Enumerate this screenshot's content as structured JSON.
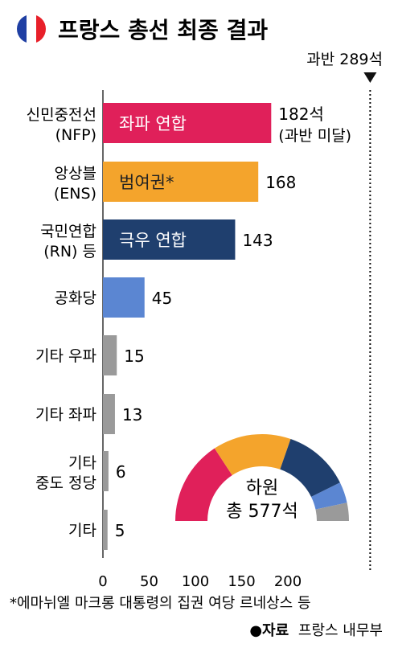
{
  "title": "프랑스 총선 최종 결과",
  "flag_colors": [
    "#1f3fa3",
    "#ffffff",
    "#e8202a"
  ],
  "majority": {
    "value": 289,
    "label": "과반 289석"
  },
  "chart_data": {
    "type": "bar",
    "orientation": "horizontal",
    "xlim": [
      0,
      289
    ],
    "x_ticks": [
      0,
      50,
      100,
      150,
      200
    ],
    "x_tick_labels": [
      "0",
      "50",
      "100",
      "150",
      "200"
    ],
    "categories": [
      {
        "line1": "신민중전선",
        "line2": "(NFP)"
      },
      {
        "line1": "앙상블",
        "line2": "(ENS)"
      },
      {
        "line1": "국민연합",
        "line2": "(RN) 등"
      },
      {
        "line1": "공화당",
        "line2": ""
      },
      {
        "line1": "기타 우파",
        "line2": ""
      },
      {
        "line1": "기타 좌파",
        "line2": ""
      },
      {
        "line1": "기타",
        "line2": "중도 정당"
      },
      {
        "line1": "기타",
        "line2": ""
      }
    ],
    "values": [
      182,
      168,
      143,
      45,
      15,
      13,
      6,
      5
    ],
    "value_labels": [
      "182석",
      "168",
      "143",
      "45",
      "15",
      "13",
      "6",
      "5"
    ],
    "value_sublabels": [
      "(과반 미달)",
      "",
      "",
      "",
      "",
      "",
      "",
      ""
    ],
    "bar_inner_labels": [
      "좌파 연합",
      "범여권*",
      "극우 연합",
      "",
      "",
      "",
      "",
      ""
    ],
    "colors": [
      "#e0205a",
      "#f4a42c",
      "#1f3f6e",
      "#5b86d2",
      "#9a9a9a",
      "#9a9a9a",
      "#9a9a9a",
      "#9a9a9a"
    ],
    "inner_label_colors": [
      "#ffffff",
      "#222222",
      "#ffffff",
      "",
      "",
      "",
      "",
      ""
    ],
    "semicircle": {
      "total": 577,
      "label_line1": "하원",
      "label_line2": "총 577석",
      "segments": [
        {
          "value": 182,
          "color": "#e0205a"
        },
        {
          "value": 168,
          "color": "#f4a42c"
        },
        {
          "value": 143,
          "color": "#1f3f6e"
        },
        {
          "value": 45,
          "color": "#5b86d2"
        },
        {
          "value": 39,
          "color": "#9a9a9a"
        }
      ]
    }
  },
  "footnote": "*에마뉘엘 마크롱 대통령의 집권 여당 르네상스 등",
  "source_prefix": "●자료",
  "source_name": "프랑스 내무부"
}
